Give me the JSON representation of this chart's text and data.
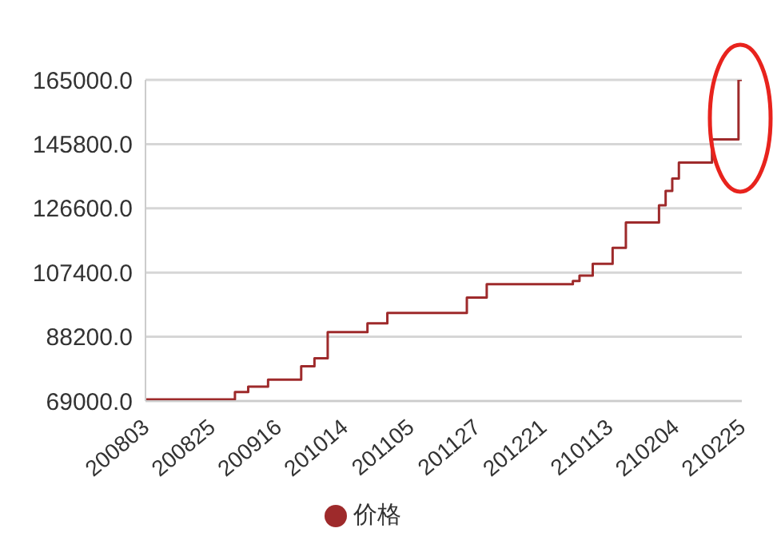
{
  "chart_data": {
    "type": "step",
    "categories": [
      "200803",
      null,
      null,
      null,
      null,
      null,
      null,
      null,
      null,
      null,
      "200825",
      null,
      null,
      null,
      null,
      null,
      null,
      null,
      null,
      null,
      "200916",
      null,
      null,
      null,
      null,
      null,
      null,
      null,
      null,
      null,
      "201014",
      null,
      null,
      null,
      null,
      null,
      null,
      null,
      null,
      null,
      "201105",
      null,
      null,
      null,
      null,
      null,
      null,
      null,
      null,
      null,
      "201127",
      null,
      null,
      null,
      null,
      null,
      null,
      null,
      null,
      null,
      "201221",
      null,
      null,
      null,
      null,
      null,
      null,
      null,
      null,
      null,
      "210113",
      null,
      null,
      null,
      null,
      null,
      null,
      null,
      null,
      null,
      "210204",
      null,
      null,
      null,
      null,
      null,
      null,
      null,
      null,
      null,
      "210225"
    ],
    "series": [
      {
        "name": "价格",
        "color": "#9e2a2b",
        "values": [
          69500,
          69500,
          69500,
          69500,
          69500,
          69500,
          69500,
          69500,
          69500,
          69500,
          69500,
          69500,
          69500,
          69500,
          71700,
          71700,
          73300,
          73300,
          73300,
          75400,
          75400,
          75400,
          75400,
          75400,
          79400,
          79400,
          81800,
          81800,
          89600,
          89600,
          89600,
          89600,
          89600,
          89600,
          92200,
          92200,
          92200,
          95300,
          95300,
          95300,
          95300,
          95300,
          95300,
          95300,
          95300,
          95300,
          95300,
          95300,
          95300,
          99900,
          99900,
          99900,
          103900,
          103900,
          103900,
          103900,
          103900,
          103900,
          103900,
          103900,
          103900,
          103900,
          103900,
          103900,
          103900,
          104900,
          106500,
          106500,
          110000,
          110000,
          110000,
          114800,
          114800,
          122400,
          122400,
          122400,
          122400,
          122400,
          127500,
          131800,
          135500,
          140300,
          140300,
          140300,
          140300,
          140300,
          147200,
          147200,
          147200,
          147200,
          165000
        ]
      }
    ],
    "ylim": [
      69000,
      165000
    ],
    "yticks": [
      {
        "value": 69000,
        "label": "69000.0"
      },
      {
        "value": 88200,
        "label": "88200.0"
      },
      {
        "value": 107400,
        "label": "107400.0"
      },
      {
        "value": 126600,
        "label": "126600.0"
      },
      {
        "value": 145800,
        "label": "145800.0"
      },
      {
        "value": 165000,
        "label": "165000.0"
      }
    ],
    "grid": "y",
    "legend": "bottom"
  }
}
